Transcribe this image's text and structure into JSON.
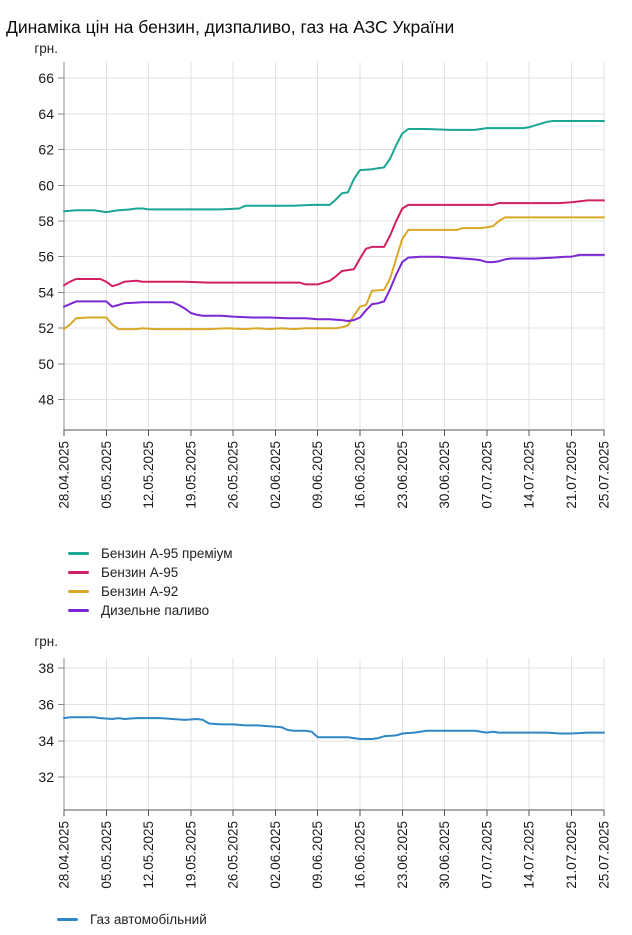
{
  "page_title": "Динаміка цін на бензин, дизпаливо, газ на АЗС України",
  "chart_data": [
    {
      "type": "line",
      "y_axis_title": "грн.",
      "x_unit": "days since 28.04.2025",
      "x_axis_dates": [
        "28.04.2025",
        "05.05.2025",
        "12.05.2025",
        "19.05.2025",
        "26.05.2025",
        "02.06.2025",
        "09.06.2025",
        "16.06.2025",
        "23.06.2025",
        "30.06.2025",
        "07.07.2025",
        "14.07.2025",
        "21.07.2025",
        "25.07.2025"
      ],
      "x_tick_days": [
        0,
        7,
        14,
        21,
        28,
        35,
        42,
        49,
        56,
        63,
        70,
        77,
        84,
        88
      ],
      "y_ticks": [
        66,
        64,
        62,
        60,
        58,
        56,
        54,
        52,
        50,
        48
      ],
      "ylim": [
        46.3,
        66.9
      ],
      "grid": true,
      "legend_position": "bottom-left",
      "series": [
        {
          "name": "Бензин А-95 преміум",
          "color": "#1AA692",
          "points": [
            [
              0,
              58.55
            ],
            [
              2,
              58.6
            ],
            [
              5,
              58.6
            ],
            [
              6,
              58.55
            ],
            [
              7,
              58.5
            ],
            [
              9,
              58.6
            ],
            [
              11,
              58.65
            ],
            [
              12,
              58.7
            ],
            [
              13,
              58.7
            ],
            [
              14,
              58.65
            ],
            [
              18,
              58.65
            ],
            [
              22,
              58.65
            ],
            [
              26,
              58.65
            ],
            [
              29,
              58.7
            ],
            [
              30,
              58.85
            ],
            [
              34,
              58.85
            ],
            [
              38,
              58.85
            ],
            [
              41,
              58.9
            ],
            [
              44,
              58.9
            ],
            [
              45,
              59.2
            ],
            [
              46,
              59.55
            ],
            [
              47,
              59.6
            ],
            [
              48,
              60.35
            ],
            [
              49,
              60.85
            ],
            [
              51,
              60.9
            ],
            [
              52,
              60.95
            ],
            [
              53,
              61.0
            ],
            [
              54,
              61.5
            ],
            [
              55,
              62.25
            ],
            [
              56,
              62.9
            ],
            [
              57,
              63.15
            ],
            [
              60,
              63.15
            ],
            [
              64,
              63.1
            ],
            [
              68,
              63.1
            ],
            [
              69,
              63.15
            ],
            [
              70,
              63.2
            ],
            [
              74,
              63.2
            ],
            [
              76,
              63.2
            ],
            [
              77,
              63.25
            ],
            [
              78,
              63.35
            ],
            [
              79,
              63.45
            ],
            [
              80,
              63.55
            ],
            [
              81,
              63.6
            ],
            [
              84,
              63.6
            ],
            [
              88,
              63.6
            ]
          ]
        },
        {
          "name": "Бензин А-95",
          "color": "#D02165",
          "points": [
            [
              0,
              54.4
            ],
            [
              1,
              54.6
            ],
            [
              2,
              54.75
            ],
            [
              6,
              54.75
            ],
            [
              7,
              54.6
            ],
            [
              8,
              54.35
            ],
            [
              9,
              54.45
            ],
            [
              10,
              54.6
            ],
            [
              12,
              54.65
            ],
            [
              13,
              54.6
            ],
            [
              16,
              54.6
            ],
            [
              20,
              54.6
            ],
            [
              24,
              54.55
            ],
            [
              28,
              54.55
            ],
            [
              32,
              54.55
            ],
            [
              36,
              54.55
            ],
            [
              39,
              54.55
            ],
            [
              40,
              54.45
            ],
            [
              42,
              54.45
            ],
            [
              43,
              54.55
            ],
            [
              44,
              54.65
            ],
            [
              45,
              54.9
            ],
            [
              46,
              55.2
            ],
            [
              48,
              55.3
            ],
            [
              49,
              55.9
            ],
            [
              50,
              56.45
            ],
            [
              51,
              56.55
            ],
            [
              53,
              56.55
            ],
            [
              54,
              57.2
            ],
            [
              55,
              58.0
            ],
            [
              56,
              58.7
            ],
            [
              57,
              58.9
            ],
            [
              61,
              58.9
            ],
            [
              66,
              58.9
            ],
            [
              71,
              58.9
            ],
            [
              72,
              59.0
            ],
            [
              77,
              59.0
            ],
            [
              82,
              59.0
            ],
            [
              84,
              59.05
            ],
            [
              86,
              59.15
            ],
            [
              88,
              59.15
            ]
          ]
        },
        {
          "name": "Бензин А-92",
          "color": "#D8A827",
          "points": [
            [
              0,
              51.95
            ],
            [
              1,
              52.2
            ],
            [
              2,
              52.55
            ],
            [
              4,
              52.6
            ],
            [
              7,
              52.6
            ],
            [
              8,
              52.2
            ],
            [
              9,
              51.95
            ],
            [
              12,
              51.95
            ],
            [
              13,
              52.0
            ],
            [
              15,
              51.95
            ],
            [
              18,
              51.95
            ],
            [
              21,
              51.95
            ],
            [
              24,
              51.95
            ],
            [
              27,
              52.0
            ],
            [
              30,
              51.95
            ],
            [
              32,
              52.0
            ],
            [
              34,
              51.95
            ],
            [
              36,
              52.0
            ],
            [
              38,
              51.95
            ],
            [
              40,
              52.0
            ],
            [
              43,
              52.0
            ],
            [
              45,
              52.0
            ],
            [
              46,
              52.05
            ],
            [
              47,
              52.15
            ],
            [
              48,
              52.7
            ],
            [
              49,
              53.2
            ],
            [
              50,
              53.3
            ],
            [
              51,
              54.1
            ],
            [
              53,
              54.15
            ],
            [
              54,
              54.8
            ],
            [
              55,
              55.9
            ],
            [
              56,
              57.0
            ],
            [
              57,
              57.5
            ],
            [
              61,
              57.5
            ],
            [
              65,
              57.5
            ],
            [
              66,
              57.6
            ],
            [
              69,
              57.6
            ],
            [
              70,
              57.65
            ],
            [
              71,
              57.7
            ],
            [
              72,
              58.0
            ],
            [
              73,
              58.2
            ],
            [
              78,
              58.2
            ],
            [
              83,
              58.2
            ],
            [
              88,
              58.2
            ]
          ]
        },
        {
          "name": "Дизельне паливо",
          "color": "#7C26D4",
          "points": [
            [
              0,
              53.2
            ],
            [
              1,
              53.35
            ],
            [
              2,
              53.5
            ],
            [
              5,
              53.5
            ],
            [
              7,
              53.5
            ],
            [
              8,
              53.2
            ],
            [
              9,
              53.3
            ],
            [
              10,
              53.4
            ],
            [
              13,
              53.45
            ],
            [
              16,
              53.45
            ],
            [
              18,
              53.45
            ],
            [
              19,
              53.3
            ],
            [
              20,
              53.1
            ],
            [
              21,
              52.85
            ],
            [
              22,
              52.75
            ],
            [
              23,
              52.7
            ],
            [
              26,
              52.7
            ],
            [
              28,
              52.65
            ],
            [
              31,
              52.6
            ],
            [
              34,
              52.6
            ],
            [
              37,
              52.55
            ],
            [
              40,
              52.55
            ],
            [
              42,
              52.5
            ],
            [
              44,
              52.5
            ],
            [
              46,
              52.45
            ],
            [
              47,
              52.4
            ],
            [
              48,
              52.45
            ],
            [
              49,
              52.6
            ],
            [
              50,
              53.0
            ],
            [
              51,
              53.35
            ],
            [
              52,
              53.4
            ],
            [
              53,
              53.5
            ],
            [
              54,
              54.2
            ],
            [
              55,
              55.0
            ],
            [
              56,
              55.7
            ],
            [
              57,
              55.95
            ],
            [
              59,
              56.0
            ],
            [
              62,
              56.0
            ],
            [
              64,
              55.95
            ],
            [
              66,
              55.9
            ],
            [
              68,
              55.85
            ],
            [
              69,
              55.8
            ],
            [
              70,
              55.7
            ],
            [
              71,
              55.7
            ],
            [
              72,
              55.75
            ],
            [
              73,
              55.85
            ],
            [
              74,
              55.9
            ],
            [
              78,
              55.9
            ],
            [
              81,
              55.95
            ],
            [
              83,
              56.0
            ],
            [
              84,
              56.0
            ],
            [
              85,
              56.1
            ],
            [
              88,
              56.1
            ]
          ]
        }
      ]
    },
    {
      "type": "line",
      "y_axis_title": "грн.",
      "x_unit": "days since 28.04.2025",
      "x_axis_dates": [
        "28.04.2025",
        "05.05.2025",
        "12.05.2025",
        "19.05.2025",
        "26.05.2025",
        "02.06.2025",
        "09.06.2025",
        "16.06.2025",
        "23.06.2025",
        "30.06.2025",
        "07.07.2025",
        "14.07.2025",
        "21.07.2025",
        "25.07.2025"
      ],
      "x_tick_days": [
        0,
        7,
        14,
        21,
        28,
        35,
        42,
        49,
        56,
        63,
        70,
        77,
        84,
        88
      ],
      "y_ticks": [
        38,
        36,
        34,
        32
      ],
      "ylim": [
        30.2,
        38.55
      ],
      "grid": true,
      "legend_position": "bottom-left",
      "series": [
        {
          "name": "Газ автомобільний",
          "color": "#2F87C6",
          "points": [
            [
              0,
              35.25
            ],
            [
              1,
              35.3
            ],
            [
              5,
              35.3
            ],
            [
              6,
              35.25
            ],
            [
              8,
              35.2
            ],
            [
              9,
              35.25
            ],
            [
              10,
              35.2
            ],
            [
              12,
              35.25
            ],
            [
              16,
              35.25
            ],
            [
              18,
              35.2
            ],
            [
              20,
              35.15
            ],
            [
              22,
              35.2
            ],
            [
              23,
              35.15
            ],
            [
              24,
              34.95
            ],
            [
              26,
              34.9
            ],
            [
              28,
              34.9
            ],
            [
              30,
              34.85
            ],
            [
              32,
              34.85
            ],
            [
              34,
              34.8
            ],
            [
              36,
              34.75
            ],
            [
              37,
              34.6
            ],
            [
              38,
              34.55
            ],
            [
              40,
              34.55
            ],
            [
              41,
              34.5
            ],
            [
              42,
              34.2
            ],
            [
              45,
              34.2
            ],
            [
              47,
              34.2
            ],
            [
              48,
              34.15
            ],
            [
              49,
              34.1
            ],
            [
              51,
              34.1
            ],
            [
              52,
              34.15
            ],
            [
              53,
              34.25
            ],
            [
              55,
              34.3
            ],
            [
              56,
              34.4
            ],
            [
              58,
              34.45
            ],
            [
              59,
              34.5
            ],
            [
              60,
              34.55
            ],
            [
              64,
              34.55
            ],
            [
              68,
              34.55
            ],
            [
              69,
              34.5
            ],
            [
              70,
              34.45
            ],
            [
              71,
              34.5
            ],
            [
              72,
              34.45
            ],
            [
              76,
              34.45
            ],
            [
              80,
              34.45
            ],
            [
              82,
              34.4
            ],
            [
              84,
              34.4
            ],
            [
              86,
              34.45
            ],
            [
              88,
              34.45
            ]
          ]
        }
      ]
    }
  ]
}
